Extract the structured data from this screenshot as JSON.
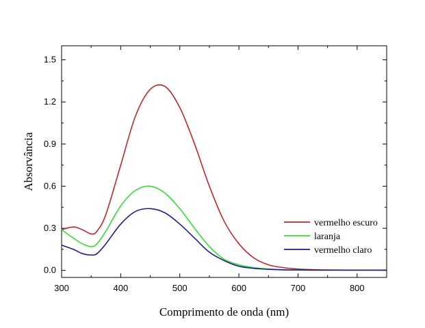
{
  "chart_data": {
    "type": "line",
    "title": "",
    "xlabel": "Comprimento de onda (nm)",
    "ylabel": "Absorvância",
    "xlim": [
      300,
      850
    ],
    "ylim": [
      -0.05,
      1.6
    ],
    "x_ticks": [
      300,
      400,
      500,
      600,
      700,
      800
    ],
    "x_tick_labels": [
      "300",
      "400",
      "500",
      "600",
      "700",
      "800"
    ],
    "y_ticks": [
      0.0,
      0.3,
      0.6,
      0.9,
      1.2,
      1.5
    ],
    "y_tick_labels": [
      "0.0",
      "0.3",
      "0.6",
      "0.9",
      "1.2",
      "1.5"
    ],
    "grid": false,
    "legend_position": "bottom-right",
    "x": [
      300,
      320,
      335,
      350,
      360,
      375,
      400,
      425,
      450,
      475,
      500,
      525,
      550,
      575,
      600,
      625,
      650,
      675,
      700,
      725,
      750,
      800,
      850
    ],
    "series": [
      {
        "name": "vermelho escuro",
        "color": "#c0262b",
        "values": [
          0.29,
          0.31,
          0.29,
          0.26,
          0.28,
          0.4,
          0.75,
          1.1,
          1.29,
          1.31,
          1.16,
          0.9,
          0.6,
          0.35,
          0.19,
          0.09,
          0.04,
          0.02,
          0.01,
          0.005,
          0.003,
          0.002,
          0.002
        ]
      },
      {
        "name": "laranja",
        "color": "#33dd33",
        "values": [
          0.29,
          0.23,
          0.19,
          0.17,
          0.19,
          0.28,
          0.46,
          0.57,
          0.6,
          0.55,
          0.44,
          0.3,
          0.17,
          0.08,
          0.04,
          0.02,
          0.01,
          0.005,
          0.003,
          0.002,
          0.002,
          0.002,
          0.002
        ]
      },
      {
        "name": "vermelho claro",
        "color": "#1a1a99",
        "values": [
          0.18,
          0.15,
          0.12,
          0.11,
          0.12,
          0.19,
          0.33,
          0.42,
          0.44,
          0.41,
          0.33,
          0.23,
          0.13,
          0.07,
          0.03,
          0.015,
          0.008,
          0.004,
          0.003,
          0.002,
          0.002,
          0.002,
          0.002
        ]
      }
    ]
  }
}
